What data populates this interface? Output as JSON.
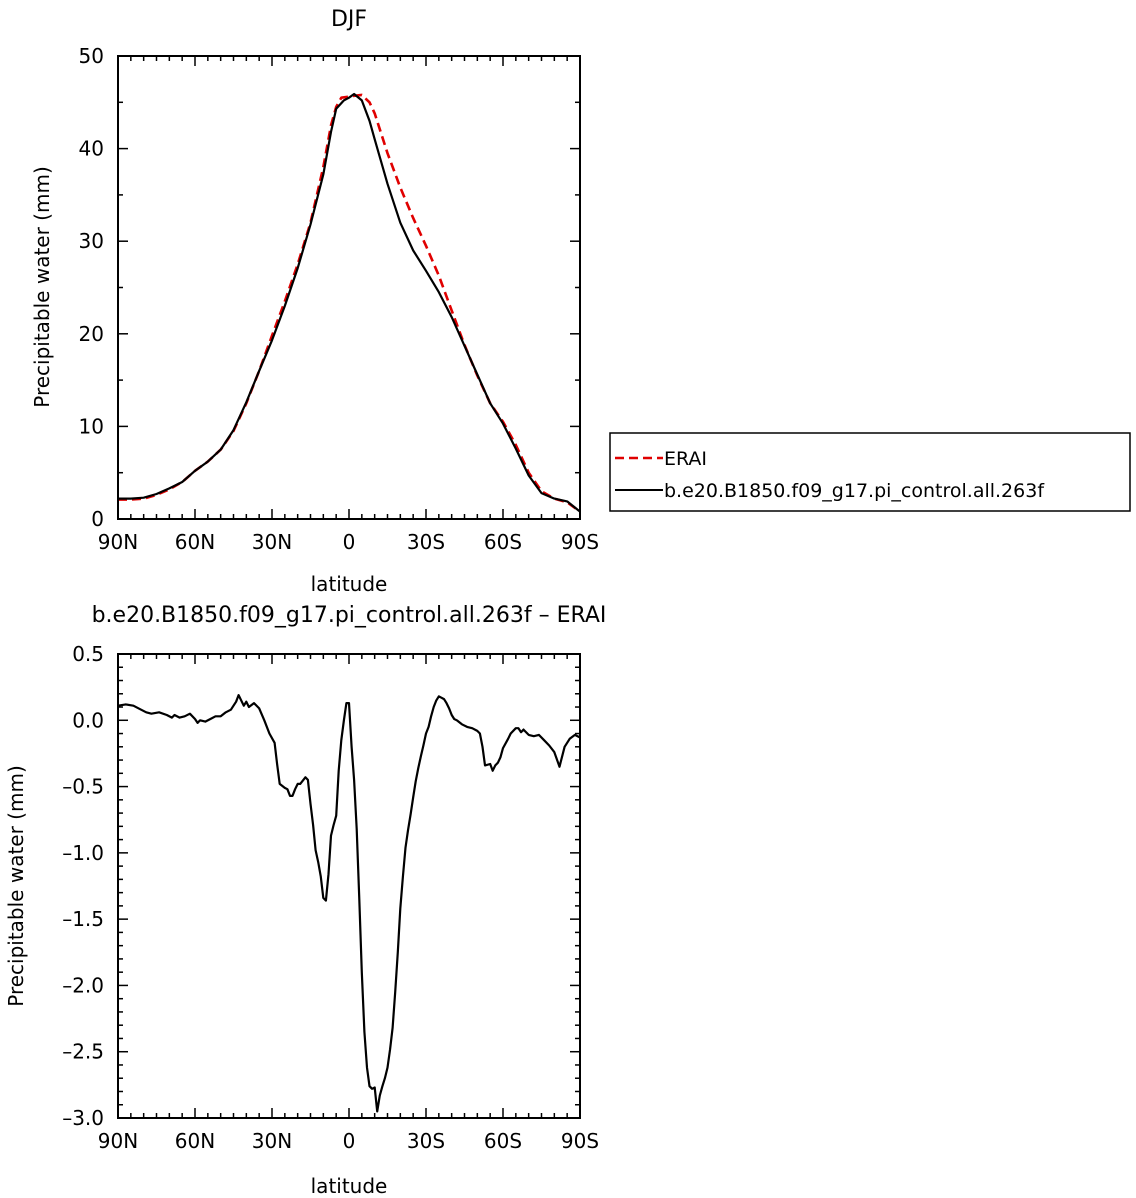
{
  "chart_data": [
    {
      "type": "line",
      "title": "DJF",
      "xlabel": "latitude",
      "ylabel": "Precipitable water (mm)",
      "xlim": [
        90,
        -90
      ],
      "ylim": [
        0,
        50
      ],
      "x_ticks": [
        90,
        60,
        30,
        0,
        -30,
        -60,
        -90
      ],
      "x_tick_labels": [
        "90N",
        "60N",
        "30N",
        "0",
        "30S",
        "60S",
        "90S"
      ],
      "y_ticks": [
        0,
        10,
        20,
        30,
        40,
        50
      ],
      "y_tick_labels": [
        "0",
        "10",
        "20",
        "30",
        "40",
        "50"
      ],
      "grid": false,
      "legend_position": "right",
      "series": [
        {
          "name": "ERAI",
          "color": "#e00000",
          "dash": "dashed",
          "points": [
            [
              90,
              2.1
            ],
            [
              85,
              2.1
            ],
            [
              80,
              2.2
            ],
            [
              75,
              2.6
            ],
            [
              70,
              3.2
            ],
            [
              65,
              4.0
            ],
            [
              60,
              5.2
            ],
            [
              55,
              6.2
            ],
            [
              50,
              7.5
            ],
            [
              45,
              9.5
            ],
            [
              40,
              12.5
            ],
            [
              35,
              16.0
            ],
            [
              30,
              19.8
            ],
            [
              25,
              23.5
            ],
            [
              20,
              27.5
            ],
            [
              15,
              32.0
            ],
            [
              10,
              38.0
            ],
            [
              7,
              42.5
            ],
            [
              5,
              44.5
            ],
            [
              3,
              45.5
            ],
            [
              0,
              45.6
            ],
            [
              -2,
              45.7
            ],
            [
              -5,
              45.8
            ],
            [
              -8,
              45.0
            ],
            [
              -10,
              43.8
            ],
            [
              -15,
              39.5
            ],
            [
              -20,
              35.8
            ],
            [
              -25,
              32.5
            ],
            [
              -30,
              29.5
            ],
            [
              -35,
              26.3
            ],
            [
              -40,
              22.5
            ],
            [
              -45,
              18.8
            ],
            [
              -50,
              15.5
            ],
            [
              -55,
              12.5
            ],
            [
              -60,
              10.5
            ],
            [
              -65,
              8.0
            ],
            [
              -70,
              5.0
            ],
            [
              -75,
              3.0
            ],
            [
              -80,
              2.2
            ],
            [
              -85,
              1.8
            ],
            [
              -90,
              0.8
            ]
          ]
        },
        {
          "name": "b.e20.B1850.f09_g17.pi_control.all.263f",
          "color": "#000000",
          "dash": "solid",
          "points": [
            [
              90,
              2.2
            ],
            [
              85,
              2.2
            ],
            [
              80,
              2.3
            ],
            [
              75,
              2.7
            ],
            [
              70,
              3.3
            ],
            [
              65,
              4.0
            ],
            [
              60,
              5.2
            ],
            [
              55,
              6.2
            ],
            [
              50,
              7.5
            ],
            [
              45,
              9.6
            ],
            [
              40,
              12.6
            ],
            [
              35,
              16.0
            ],
            [
              30,
              19.3
            ],
            [
              25,
              23.0
            ],
            [
              20,
              27.1
            ],
            [
              15,
              31.8
            ],
            [
              10,
              37.2
            ],
            [
              7,
              41.8
            ],
            [
              5,
              44.3
            ],
            [
              2,
              45.2
            ],
            [
              0,
              45.5
            ],
            [
              -2,
              45.9
            ],
            [
              -5,
              45.2
            ],
            [
              -8,
              43.0
            ],
            [
              -10,
              41.0
            ],
            [
              -15,
              36.2
            ],
            [
              -20,
              32.0
            ],
            [
              -25,
              29.0
            ],
            [
              -30,
              26.8
            ],
            [
              -35,
              24.5
            ],
            [
              -40,
              21.8
            ],
            [
              -45,
              18.7
            ],
            [
              -50,
              15.6
            ],
            [
              -55,
              12.5
            ],
            [
              -60,
              10.3
            ],
            [
              -65,
              7.6
            ],
            [
              -70,
              4.7
            ],
            [
              -75,
              2.8
            ],
            [
              -80,
              2.2
            ],
            [
              -85,
              1.9
            ],
            [
              -90,
              0.8
            ]
          ]
        }
      ]
    },
    {
      "type": "line",
      "title": "b.e20.B1850.f09_g17.pi_control.all.263f – ERAI",
      "xlabel": "latitude",
      "ylabel": "Precipitable water (mm)",
      "xlim": [
        90,
        -90
      ],
      "ylim": [
        -3.0,
        0.5
      ],
      "x_ticks": [
        90,
        60,
        30,
        0,
        -30,
        -60,
        -90
      ],
      "x_tick_labels": [
        "90N",
        "60N",
        "30N",
        "0",
        "30S",
        "60S",
        "90S"
      ],
      "y_ticks": [
        0.5,
        0.0,
        -0.5,
        -1.0,
        -1.5,
        -2.0,
        -2.5,
        -3.0
      ],
      "y_tick_labels": [
        "0.5",
        "0.0",
        "–0.5",
        "–1.0",
        "–1.5",
        "–2.0",
        "–2.5",
        "–3.0"
      ],
      "grid": false,
      "series": [
        {
          "color": "#000000",
          "dash": "solid",
          "points": [
            [
              90,
              0.11
            ],
            [
              87,
              0.12
            ],
            [
              84,
              0.11
            ],
            [
              81,
              0.08
            ],
            [
              79,
              0.06
            ],
            [
              77,
              0.05
            ],
            [
              74,
              0.06
            ],
            [
              71,
              0.04
            ],
            [
              69,
              0.02
            ],
            [
              68,
              0.04
            ],
            [
              66,
              0.02
            ],
            [
              64,
              0.03
            ],
            [
              62,
              0.05
            ],
            [
              60,
              0.01
            ],
            [
              59,
              -0.02
            ],
            [
              58,
              0.0
            ],
            [
              56,
              -0.01
            ],
            [
              54,
              0.01
            ],
            [
              52,
              0.03
            ],
            [
              50,
              0.03
            ],
            [
              48,
              0.06
            ],
            [
              46,
              0.08
            ],
            [
              44,
              0.14
            ],
            [
              43,
              0.19
            ],
            [
              41,
              0.11
            ],
            [
              40,
              0.14
            ],
            [
              39,
              0.1
            ],
            [
              37,
              0.13
            ],
            [
              35,
              0.09
            ],
            [
              33,
              0.0
            ],
            [
              31,
              -0.1
            ],
            [
              29,
              -0.17
            ],
            [
              28,
              -0.33
            ],
            [
              27,
              -0.48
            ],
            [
              25,
              -0.51
            ],
            [
              24,
              -0.52
            ],
            [
              23,
              -0.57
            ],
            [
              22,
              -0.57
            ],
            [
              21,
              -0.52
            ],
            [
              20,
              -0.48
            ],
            [
              19,
              -0.48
            ],
            [
              17,
              -0.43
            ],
            [
              16,
              -0.45
            ],
            [
              15,
              -0.63
            ],
            [
              14,
              -0.79
            ],
            [
              13,
              -0.98
            ],
            [
              12,
              -1.07
            ],
            [
              11,
              -1.18
            ],
            [
              10,
              -1.34
            ],
            [
              9,
              -1.36
            ],
            [
              8,
              -1.16
            ],
            [
              7,
              -0.87
            ],
            [
              6,
              -0.79
            ],
            [
              5,
              -0.72
            ],
            [
              4,
              -0.38
            ],
            [
              3,
              -0.15
            ],
            [
              2,
              0.0
            ],
            [
              1,
              0.13
            ],
            [
              0,
              0.13
            ],
            [
              -1,
              -0.2
            ],
            [
              -2,
              -0.45
            ],
            [
              -3,
              -0.82
            ],
            [
              -4,
              -1.35
            ],
            [
              -5,
              -1.9
            ],
            [
              -6,
              -2.35
            ],
            [
              -7,
              -2.62
            ],
            [
              -8,
              -2.76
            ],
            [
              -9,
              -2.78
            ],
            [
              -10,
              -2.77
            ],
            [
              -11,
              -2.95
            ],
            [
              -12,
              -2.83
            ],
            [
              -13,
              -2.76
            ],
            [
              -14,
              -2.7
            ],
            [
              -15,
              -2.62
            ],
            [
              -16,
              -2.48
            ],
            [
              -17,
              -2.32
            ],
            [
              -18,
              -2.05
            ],
            [
              -19,
              -1.75
            ],
            [
              -20,
              -1.42
            ],
            [
              -21,
              -1.18
            ],
            [
              -22,
              -0.96
            ],
            [
              -23,
              -0.83
            ],
            [
              -24,
              -0.71
            ],
            [
              -25,
              -0.58
            ],
            [
              -26,
              -0.46
            ],
            [
              -27,
              -0.36
            ],
            [
              -28,
              -0.27
            ],
            [
              -29,
              -0.19
            ],
            [
              -30,
              -0.1
            ],
            [
              -31,
              -0.05
            ],
            [
              -32,
              0.03
            ],
            [
              -33,
              0.1
            ],
            [
              -34,
              0.15
            ],
            [
              -35,
              0.18
            ],
            [
              -36,
              0.17
            ],
            [
              -37,
              0.16
            ],
            [
              -38,
              0.13
            ],
            [
              -39,
              0.09
            ],
            [
              -40,
              0.04
            ],
            [
              -41,
              0.01
            ],
            [
              -42,
              0.0
            ],
            [
              -44,
              -0.03
            ],
            [
              -46,
              -0.05
            ],
            [
              -48,
              -0.06
            ],
            [
              -50,
              -0.08
            ],
            [
              -51,
              -0.1
            ],
            [
              -52,
              -0.2
            ],
            [
              -53,
              -0.34
            ],
            [
              -55,
              -0.33
            ],
            [
              -56,
              -0.38
            ],
            [
              -57,
              -0.34
            ],
            [
              -58,
              -0.32
            ],
            [
              -59,
              -0.28
            ],
            [
              -60,
              -0.21
            ],
            [
              -62,
              -0.14
            ],
            [
              -63,
              -0.1
            ],
            [
              -65,
              -0.06
            ],
            [
              -66,
              -0.06
            ],
            [
              -67,
              -0.09
            ],
            [
              -68,
              -0.07
            ],
            [
              -70,
              -0.11
            ],
            [
              -72,
              -0.12
            ],
            [
              -74,
              -0.11
            ],
            [
              -76,
              -0.15
            ],
            [
              -78,
              -0.19
            ],
            [
              -80,
              -0.24
            ],
            [
              -82,
              -0.35
            ],
            [
              -84,
              -0.2
            ],
            [
              -86,
              -0.14
            ],
            [
              -88,
              -0.11
            ],
            [
              -90,
              -0.13
            ]
          ]
        }
      ]
    }
  ]
}
